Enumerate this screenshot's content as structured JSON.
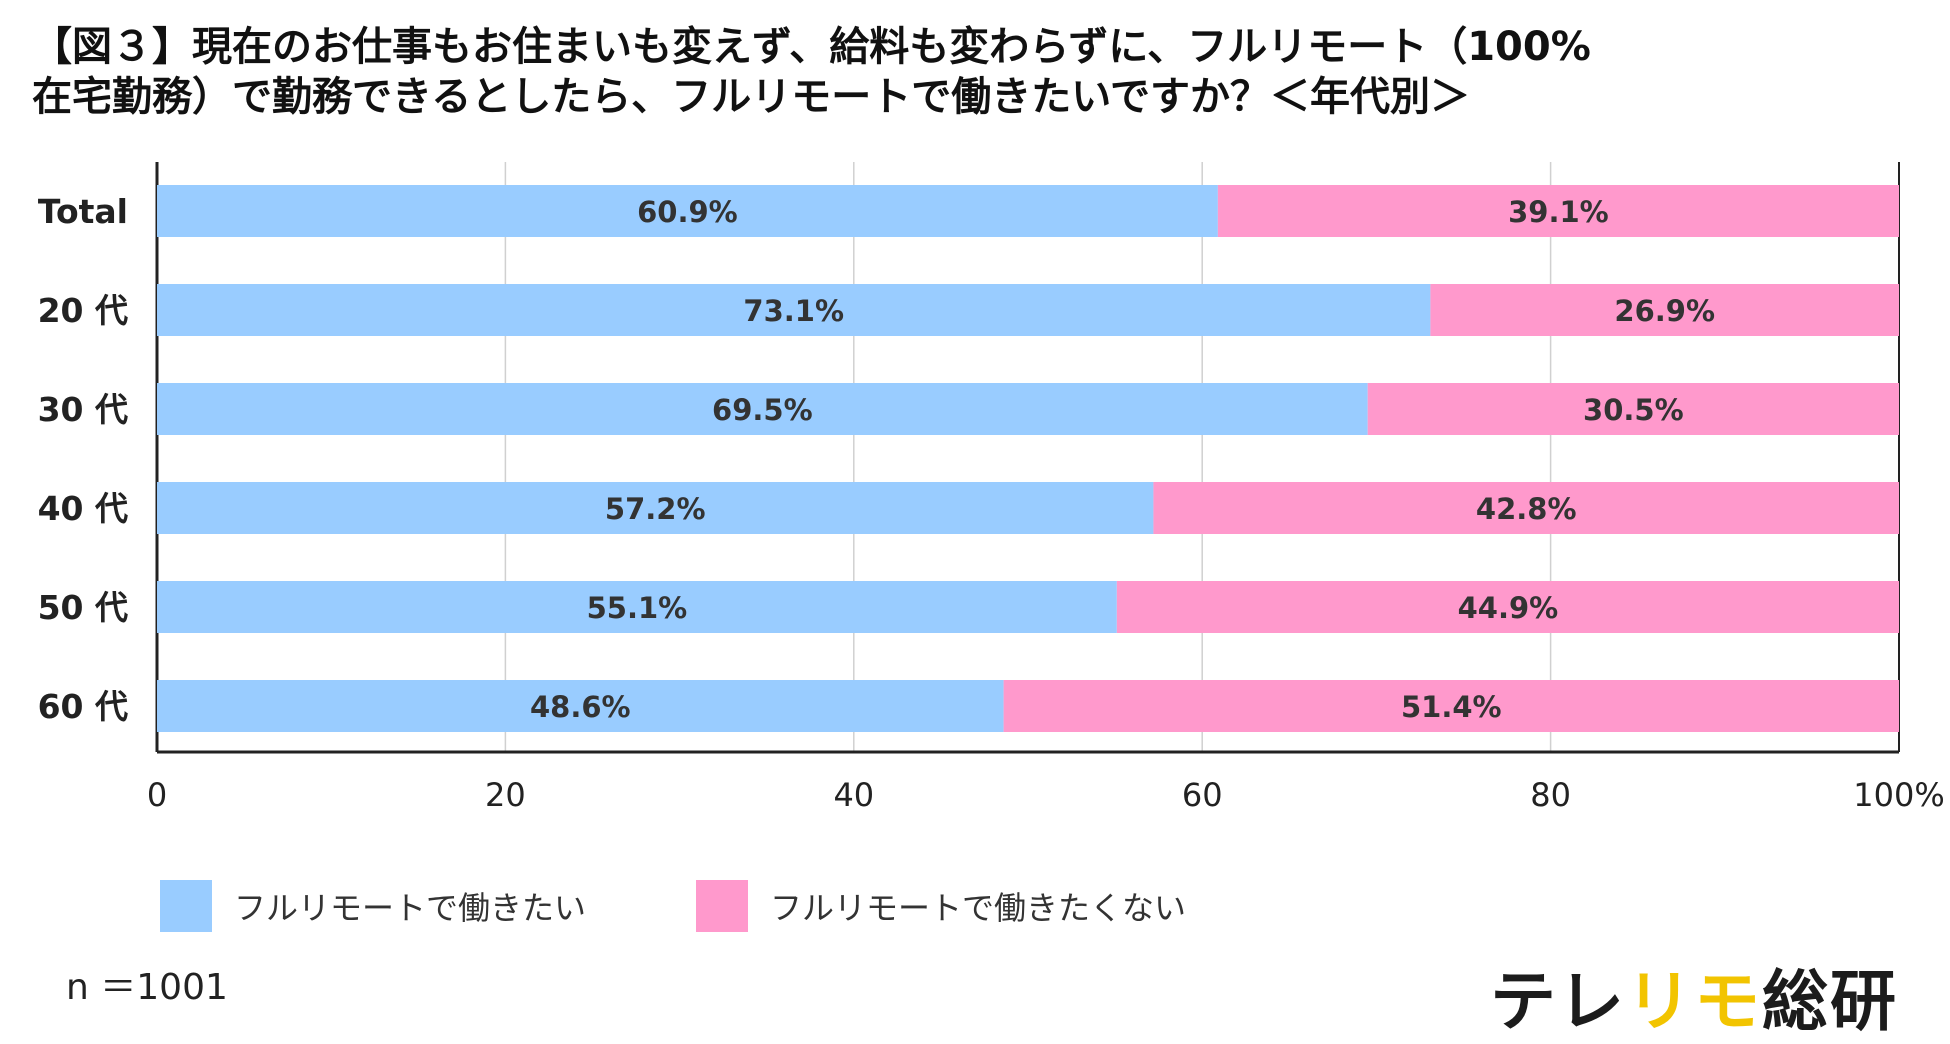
{
  "title": {
    "line1": "【図３】現在のお仕事もお住まいも変えず、給料も変わらずに、フルリモート（100%",
    "line2": "在宅勤務）で勤務できるとしたら、フルリモートで働きたいですか？＜年代別＞"
  },
  "chart_data": {
    "type": "bar",
    "orientation": "horizontal",
    "stacked": true,
    "categories": [
      "Total",
      "20 代",
      "30 代",
      "40 代",
      "50 代",
      "60 代"
    ],
    "series": [
      {
        "name": "フルリモートで働きたい",
        "values": [
          60.9,
          73.1,
          69.5,
          57.2,
          55.1,
          48.6
        ],
        "color": "#99ccff"
      },
      {
        "name": "フルリモートで働きたくない",
        "values": [
          39.1,
          26.9,
          30.5,
          42.8,
          44.9,
          51.4
        ],
        "color": "#ff99cc"
      }
    ],
    "data_labels": [
      [
        "60.9%",
        "73.1%",
        "69.5%",
        "57.2%",
        "55.1%",
        "48.6%"
      ],
      [
        "39.1%",
        "26.9%",
        "30.5%",
        "42.8%",
        "44.9%",
        "51.4%"
      ]
    ],
    "x_ticks": [
      "0",
      "20",
      "40",
      "60",
      "80",
      "100%"
    ],
    "xlim": [
      0,
      100
    ],
    "grid": true,
    "legend_position": "bottom"
  },
  "note": "n ＝1001",
  "logo": {
    "part1": "テレ",
    "part2": "リモ",
    "part3": "総研",
    "accent_color": "#f2c400"
  }
}
